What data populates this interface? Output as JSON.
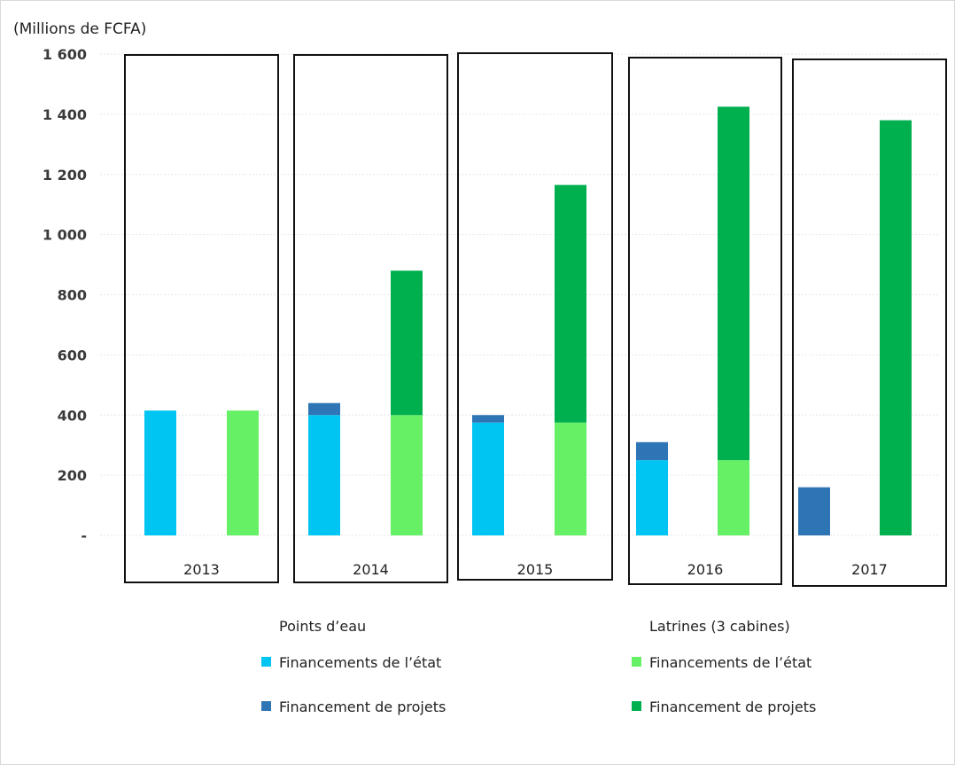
{
  "chart_data": {
    "type": "bar",
    "stacked": true,
    "grouped": true,
    "y_unit_label": "(Millions de FCFA)",
    "ylim": [
      0,
      1600
    ],
    "y_ticks": [
      {
        "value": 0,
        "label": "-"
      },
      {
        "value": 200,
        "label": "200"
      },
      {
        "value": 400,
        "label": "400"
      },
      {
        "value": 600,
        "label": "600"
      },
      {
        "value": 800,
        "label": "800"
      },
      {
        "value": 1000,
        "label": "1 000"
      },
      {
        "value": 1200,
        "label": "1 200"
      },
      {
        "value": 1400,
        "label": "1 400"
      },
      {
        "value": 1600,
        "label": "1 600"
      }
    ],
    "grid": true,
    "categories": [
      "2013",
      "2014",
      "2015",
      "2016",
      "2017"
    ],
    "groups": [
      {
        "name": "Points d’eau",
        "series": [
          {
            "name": "Financements de l’état",
            "color": "#00C5F2",
            "values": [
              415,
              400,
              375,
              250,
              0
            ]
          },
          {
            "name": "Financement de  projets",
            "color": "#2E75B6",
            "values": [
              0,
              40,
              25,
              60,
              160
            ]
          }
        ]
      },
      {
        "name": "Latrines (3 cabines)",
        "series": [
          {
            "name": "Financements de l’état",
            "color": "#66F066",
            "values": [
              415,
              400,
              375,
              250,
              0
            ]
          },
          {
            "name": "Financement de projets",
            "color": "#00B04F",
            "values": [
              0,
              480,
              790,
              1175,
              1380
            ]
          }
        ]
      }
    ],
    "legend_position": "bottom"
  }
}
